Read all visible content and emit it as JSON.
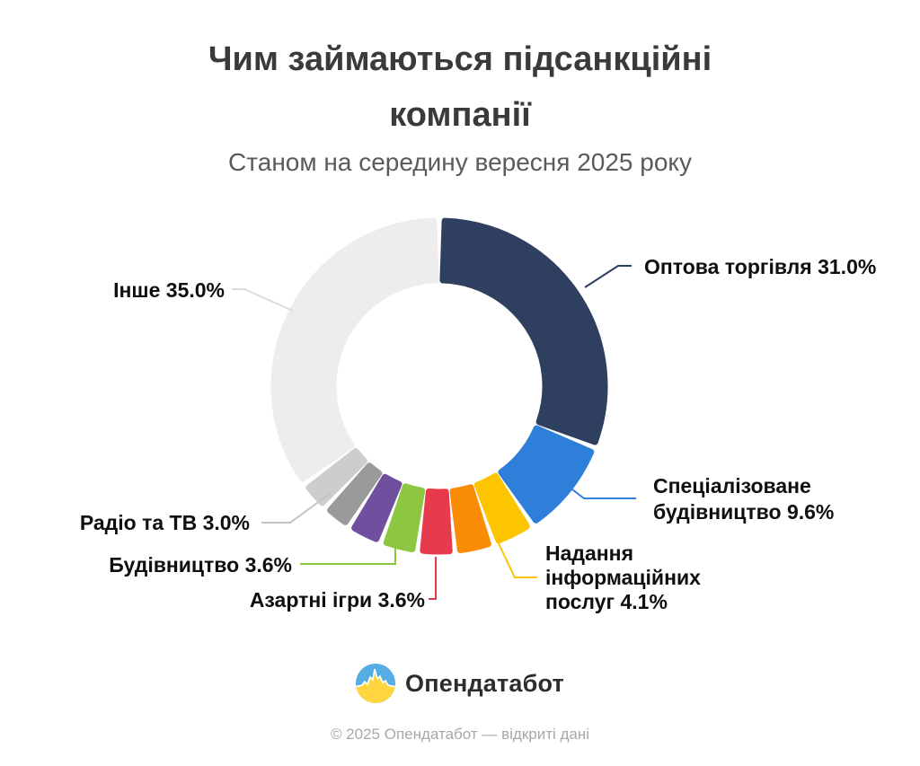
{
  "header": {
    "title": "Чим займаються підсанкційні компанії",
    "subtitle": "Станом на середину вересня 2025 року"
  },
  "chart_data": {
    "type": "pie",
    "variant": "donut",
    "title": "Чим займаються підсанкційні компанії",
    "subtitle": "Станом на середину вересня 2025 року",
    "unit": "%",
    "start_angle_deg": 0,
    "direction": "clockwise",
    "segments": [
      {
        "label": "Оптова торгівля",
        "value": 31.0,
        "color": "#2e3f5f",
        "labeled": true
      },
      {
        "label": "Спеціалізоване будівництво",
        "value": 9.6,
        "color": "#2e7fd9",
        "labeled": true
      },
      {
        "label": "Надання інформаційних послуг",
        "value": 4.1,
        "color": "#fdc500",
        "labeled": true
      },
      {
        "label": "",
        "value": 3.8,
        "color": "#fa8b05",
        "labeled": false,
        "estimated": true
      },
      {
        "label": "Азартні ігри",
        "value": 3.6,
        "color": "#e83a4d",
        "labeled": true
      },
      {
        "label": "Будівництво",
        "value": 3.6,
        "color": "#8dc63f",
        "labeled": true
      },
      {
        "label": "",
        "value": 3.4,
        "color": "#6f4f9e",
        "labeled": false,
        "estimated": true
      },
      {
        "label": "",
        "value": 2.9,
        "color": "#9a9a9a",
        "labeled": false,
        "estimated": true
      },
      {
        "label": "Радіо та ТВ",
        "value": 3.0,
        "color": "#cdcdcd",
        "labeled": true
      },
      {
        "label": "Інше",
        "value": 35.0,
        "color": "#ededed",
        "labeled": true
      }
    ]
  },
  "callout_labels": {
    "wholesale": {
      "lines": [
        "Оптова торгівля 31.0%"
      ]
    },
    "spec_construction": {
      "lines": [
        "Спеціалізоване",
        "будівництво 9.6%"
      ]
    },
    "info_services": {
      "lines": [
        "Надання",
        "інформаційних",
        "послуг 4.1%"
      ]
    },
    "gambling": {
      "lines": [
        "Азартні ігри 3.6%"
      ]
    },
    "construction": {
      "lines": [
        "Будівництво 3.6%"
      ]
    },
    "radio_tv": {
      "lines": [
        "Радіо та ТВ 3.0%"
      ]
    },
    "other": {
      "lines": [
        "Інше 35.0%"
      ]
    }
  },
  "branding": {
    "logo_text": "Опендатабот",
    "logo_icon": "opendatabot-pulse-circle",
    "logo_blue": "#55ade4",
    "logo_yellow": "#ffd640"
  },
  "footer": {
    "copyright": "© 2025 Опендатабот — відкриті дані"
  }
}
